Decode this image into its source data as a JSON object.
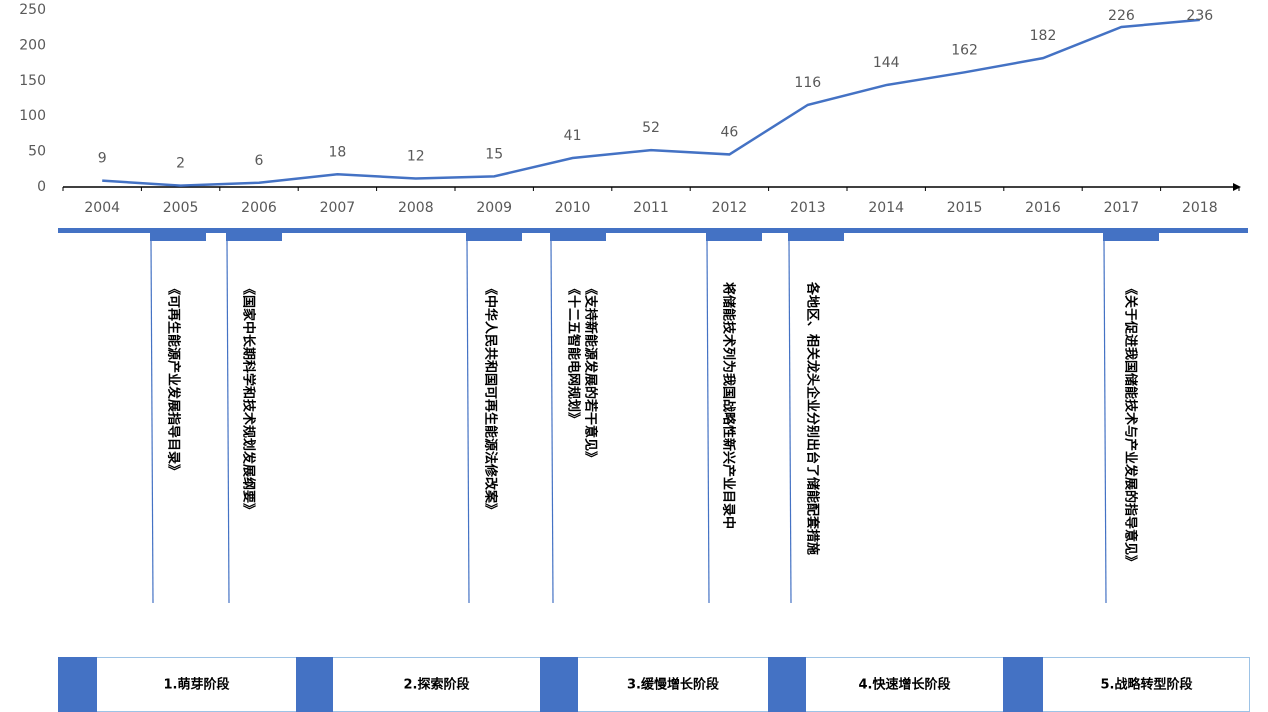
{
  "chart_data": {
    "type": "line",
    "categories": [
      "2004",
      "2005",
      "2006",
      "2007",
      "2008",
      "2009",
      "2010",
      "2011",
      "2012",
      "2013",
      "2014",
      "2015",
      "2016",
      "2017",
      "2018"
    ],
    "values": [
      9,
      2,
      6,
      18,
      12,
      15,
      41,
      52,
      46,
      116,
      144,
      162,
      182,
      226,
      236
    ],
    "color": "#4472c4",
    "ylim": [
      0,
      250
    ],
    "yticks": [
      0,
      50,
      100,
      150,
      200,
      250
    ],
    "grid": false,
    "data_labels": true
  },
  "timeline": {
    "annotations": [
      {
        "lines": [
          "《可再生能源产业发展指导目录》"
        ]
      },
      {
        "lines": [
          "《国家中长期科学和技术规划发展纲要》"
        ]
      },
      {
        "lines": [
          "《中华人民共和国可再生能源法修改案》"
        ]
      },
      {
        "lines": [
          "《十二五智能电网规划》",
          "《支持新能源发展的若干意见》"
        ]
      },
      {
        "lines": [
          "将储能技术列为我国战略性新兴产业目录中"
        ]
      },
      {
        "lines": [
          "各地区、相关龙头企业分别出台了储能配套措施"
        ]
      },
      {
        "lines": [
          "《关于促进我国储能技术与产业发展的指导意见》"
        ]
      }
    ]
  },
  "stages": [
    "1.萌芽阶段",
    "2.探索阶段",
    "3.缓慢增长阶段",
    "4.快速增长阶段",
    "5.战略转型阶段"
  ]
}
